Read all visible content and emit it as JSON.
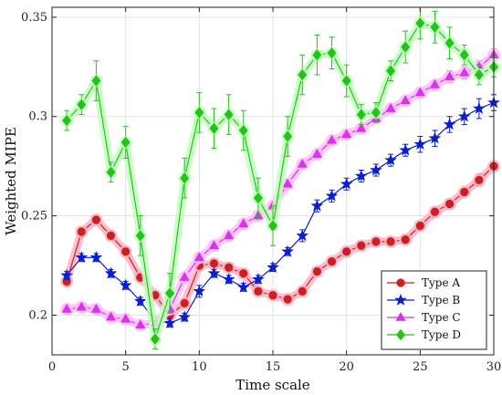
{
  "chart_data": {
    "type": "line",
    "title": "",
    "xlabel": "Time scale",
    "ylabel": "Weighted MIPE",
    "xlim": [
      0,
      30
    ],
    "ylim": [
      0.18,
      0.355
    ],
    "xticks": [
      0,
      5,
      10,
      15,
      20,
      25,
      30
    ],
    "yticks": [
      0.2,
      0.25,
      0.3,
      0.35
    ],
    "grid": true,
    "legend_position": "bottom-right",
    "x": [
      1,
      2,
      3,
      4,
      5,
      6,
      7,
      8,
      9,
      10,
      11,
      12,
      13,
      14,
      15,
      16,
      17,
      18,
      19,
      20,
      21,
      22,
      23,
      24,
      25,
      26,
      27,
      28,
      29,
      30
    ],
    "series": [
      {
        "name": "Type A",
        "marker": "circle",
        "color": "#cc1f1f",
        "glow": "#ffb3c6",
        "values": [
          0.217,
          0.242,
          0.248,
          0.24,
          0.232,
          0.219,
          0.21,
          0.2,
          0.206,
          0.225,
          0.226,
          0.224,
          0.221,
          0.212,
          0.21,
          0.208,
          0.212,
          0.222,
          0.227,
          0.232,
          0.235,
          0.237,
          0.237,
          0.238,
          0.245,
          0.252,
          0.256,
          0.262,
          0.268,
          0.275
        ],
        "errors": [
          0.002,
          0.002,
          0.002,
          0.002,
          0.002,
          0.002,
          0.002,
          0.002,
          0.002,
          0.002,
          0.002,
          0.002,
          0.002,
          0.002,
          0.002,
          0.002,
          0.002,
          0.002,
          0.002,
          0.002,
          0.002,
          0.002,
          0.002,
          0.002,
          0.002,
          0.002,
          0.002,
          0.002,
          0.003,
          0.002
        ]
      },
      {
        "name": "Type B",
        "marker": "star",
        "color": "#0a1fcc",
        "glow": null,
        "values": [
          0.22,
          0.229,
          0.229,
          0.221,
          0.215,
          0.207,
          0.197,
          0.196,
          0.199,
          0.212,
          0.221,
          0.218,
          0.214,
          0.218,
          0.224,
          0.232,
          0.24,
          0.255,
          0.26,
          0.266,
          0.27,
          0.273,
          0.278,
          0.283,
          0.286,
          0.289,
          0.296,
          0.3,
          0.304,
          0.307
        ],
        "errors": [
          0.002,
          0.002,
          0.002,
          0.002,
          0.002,
          0.002,
          0.002,
          0.002,
          0.002,
          0.003,
          0.002,
          0.002,
          0.002,
          0.002,
          0.002,
          0.002,
          0.003,
          0.003,
          0.003,
          0.003,
          0.003,
          0.003,
          0.003,
          0.003,
          0.004,
          0.004,
          0.004,
          0.004,
          0.005,
          0.004
        ]
      },
      {
        "name": "Type C",
        "marker": "triangle",
        "color": "#d633ee",
        "glow": "#ffc0f8",
        "values": [
          0.203,
          0.204,
          0.203,
          0.199,
          0.198,
          0.195,
          0.196,
          0.203,
          0.219,
          0.229,
          0.235,
          0.24,
          0.246,
          0.25,
          0.255,
          0.266,
          0.276,
          0.281,
          0.288,
          0.291,
          0.294,
          0.299,
          0.304,
          0.308,
          0.312,
          0.316,
          0.32,
          0.322,
          0.325,
          0.331
        ],
        "errors": [
          0.002,
          0.002,
          0.002,
          0.002,
          0.002,
          0.002,
          0.002,
          0.002,
          0.002,
          0.002,
          0.002,
          0.002,
          0.002,
          0.002,
          0.002,
          0.002,
          0.002,
          0.002,
          0.002,
          0.002,
          0.002,
          0.002,
          0.002,
          0.002,
          0.002,
          0.002,
          0.003,
          0.003,
          0.003,
          0.003
        ]
      },
      {
        "name": "Type D",
        "marker": "diamond",
        "color": "#22c41a",
        "glow": "#c3ffbd",
        "values": [
          0.298,
          0.306,
          0.318,
          0.272,
          0.287,
          0.24,
          0.188,
          0.211,
          0.269,
          0.302,
          0.294,
          0.301,
          0.293,
          0.259,
          0.245,
          0.29,
          0.321,
          0.331,
          0.332,
          0.318,
          0.301,
          0.302,
          0.323,
          0.335,
          0.347,
          0.345,
          0.337,
          0.331,
          0.321,
          0.325
        ],
        "errors": [
          0.005,
          0.005,
          0.01,
          0.005,
          0.008,
          0.01,
          0.005,
          0.01,
          0.01,
          0.01,
          0.01,
          0.01,
          0.01,
          0.01,
          0.01,
          0.01,
          0.01,
          0.01,
          0.008,
          0.008,
          0.005,
          0.005,
          0.005,
          0.008,
          0.008,
          0.008,
          0.008,
          0.005,
          0.005,
          0.005
        ]
      }
    ]
  }
}
